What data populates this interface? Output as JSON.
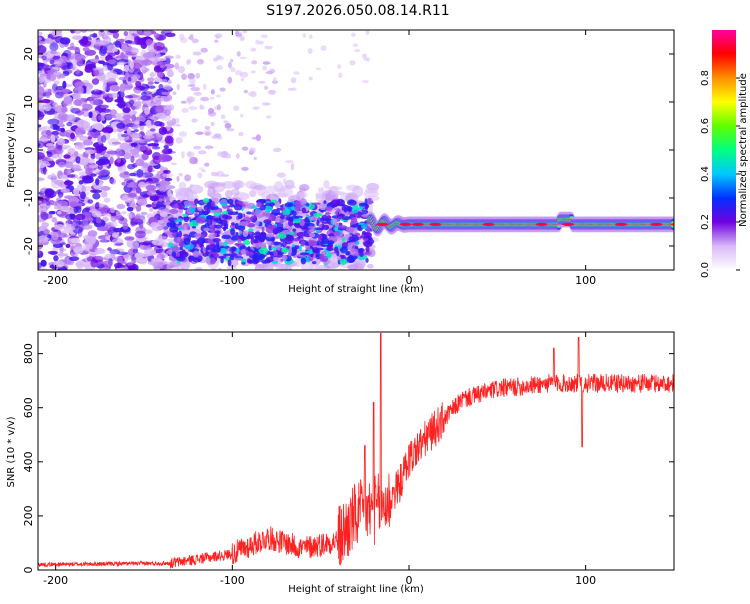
{
  "title": "S197.2026.050.08.14.R11",
  "chart_data": [
    {
      "type": "heatmap",
      "name": "spectrogram",
      "xlabel": "Height of straight line (km)",
      "ylabel": "Frequency (Hz)",
      "xlim": [
        -210,
        150
      ],
      "ylim": [
        -25,
        25
      ],
      "xticks": [
        -200,
        -100,
        0,
        100
      ],
      "yticks": [
        -20,
        -10,
        0,
        10,
        20
      ],
      "tone_frequency_hz": -15.5,
      "colorbar": {
        "label": "Normalized spectral amplitude",
        "range": [
          0,
          1
        ],
        "ticks": [
          0.0,
          0.2,
          0.4,
          0.6,
          0.8
        ],
        "tick_labels": [
          "0.0",
          "0.2",
          "0.4",
          "0.6",
          "0.8"
        ],
        "colormap_stops": [
          {
            "v": 0.0,
            "color": "#ffffff"
          },
          {
            "v": 0.1,
            "color": "#d8b8f8"
          },
          {
            "v": 0.2,
            "color": "#7000e0"
          },
          {
            "v": 0.3,
            "color": "#0030ff"
          },
          {
            "v": 0.4,
            "color": "#00c8ff"
          },
          {
            "v": 0.5,
            "color": "#00ff80"
          },
          {
            "v": 0.6,
            "color": "#60ff00"
          },
          {
            "v": 0.7,
            "color": "#ffff00"
          },
          {
            "v": 0.8,
            "color": "#ff9000"
          },
          {
            "v": 0.9,
            "color": "#ff0000"
          },
          {
            "v": 1.0,
            "color": "#ff00a0"
          }
        ]
      }
    },
    {
      "type": "line",
      "name": "snr",
      "xlabel": "Height of straight line (km)",
      "ylabel": "SNR (10 * v/v)",
      "xlim": [
        -210,
        150
      ],
      "ylim": [
        0,
        880
      ],
      "xticks": [
        -200,
        -100,
        0,
        100
      ],
      "yticks": [
        0,
        200,
        400,
        600,
        800
      ],
      "line_color": "#ff2020",
      "series_profile": [
        {
          "x": -210,
          "y": 20
        },
        {
          "x": -135,
          "y": 25
        },
        {
          "x": -100,
          "y": 60
        },
        {
          "x": -80,
          "y": 120
        },
        {
          "x": -60,
          "y": 80
        },
        {
          "x": -40,
          "y": 110
        },
        {
          "x": -30,
          "y": 200
        },
        {
          "x": -20,
          "y": 220
        },
        {
          "x": -12,
          "y": 250
        },
        {
          "x": -5,
          "y": 320
        },
        {
          "x": 0,
          "y": 410
        },
        {
          "x": 10,
          "y": 490
        },
        {
          "x": 20,
          "y": 560
        },
        {
          "x": 30,
          "y": 630
        },
        {
          "x": 50,
          "y": 670
        },
        {
          "x": 80,
          "y": 690
        },
        {
          "x": 150,
          "y": 690
        }
      ],
      "spikes": [
        {
          "x": -16,
          "y": 875
        },
        {
          "x": -20,
          "y": 620
        },
        {
          "x": -25,
          "y": 460
        },
        {
          "x": 96,
          "y": 860
        },
        {
          "x": 82,
          "y": 820
        },
        {
          "x": 98,
          "y": 455
        }
      ]
    }
  ]
}
